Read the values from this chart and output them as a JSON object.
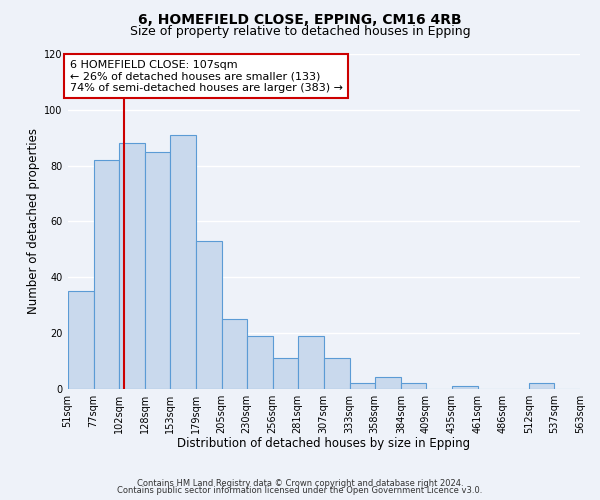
{
  "title": "6, HOMEFIELD CLOSE, EPPING, CM16 4RB",
  "subtitle": "Size of property relative to detached houses in Epping",
  "xlabel": "Distribution of detached houses by size in Epping",
  "ylabel": "Number of detached properties",
  "bin_edges": [
    51,
    77,
    102,
    128,
    153,
    179,
    205,
    230,
    256,
    281,
    307,
    333,
    358,
    384,
    409,
    435,
    461,
    486,
    512,
    537,
    563
  ],
  "bin_labels": [
    "51sqm",
    "77sqm",
    "102sqm",
    "128sqm",
    "153sqm",
    "179sqm",
    "205sqm",
    "230sqm",
    "256sqm",
    "281sqm",
    "307sqm",
    "333sqm",
    "358sqm",
    "384sqm",
    "409sqm",
    "435sqm",
    "461sqm",
    "486sqm",
    "512sqm",
    "537sqm",
    "563sqm"
  ],
  "counts": [
    35,
    82,
    88,
    85,
    91,
    53,
    25,
    19,
    11,
    19,
    11,
    2,
    4,
    2,
    0,
    1,
    0,
    0,
    2,
    0
  ],
  "bar_facecolor": "#c9d9ed",
  "bar_edgecolor": "#5b9bd5",
  "bar_linewidth": 0.8,
  "reference_line_x": 107,
  "reference_line_color": "#cc0000",
  "ylim": [
    0,
    120
  ],
  "yticks": [
    0,
    20,
    40,
    60,
    80,
    100,
    120
  ],
  "annotation_line1": "6 HOMEFIELD CLOSE: 107sqm",
  "annotation_line2": "← 26% of detached houses are smaller (133)",
  "annotation_line3": "74% of semi-detached houses are larger (383) →",
  "annotation_box_facecolor": "white",
  "annotation_box_edgecolor": "#cc0000",
  "footer_line1": "Contains HM Land Registry data © Crown copyright and database right 2024.",
  "footer_line2": "Contains public sector information licensed under the Open Government Licence v3.0.",
  "background_color": "#eef2f9",
  "grid_color": "white",
  "title_fontsize": 10,
  "subtitle_fontsize": 9,
  "axis_label_fontsize": 8.5,
  "tick_fontsize": 7,
  "footer_fontsize": 6,
  "annotation_fontsize": 8
}
